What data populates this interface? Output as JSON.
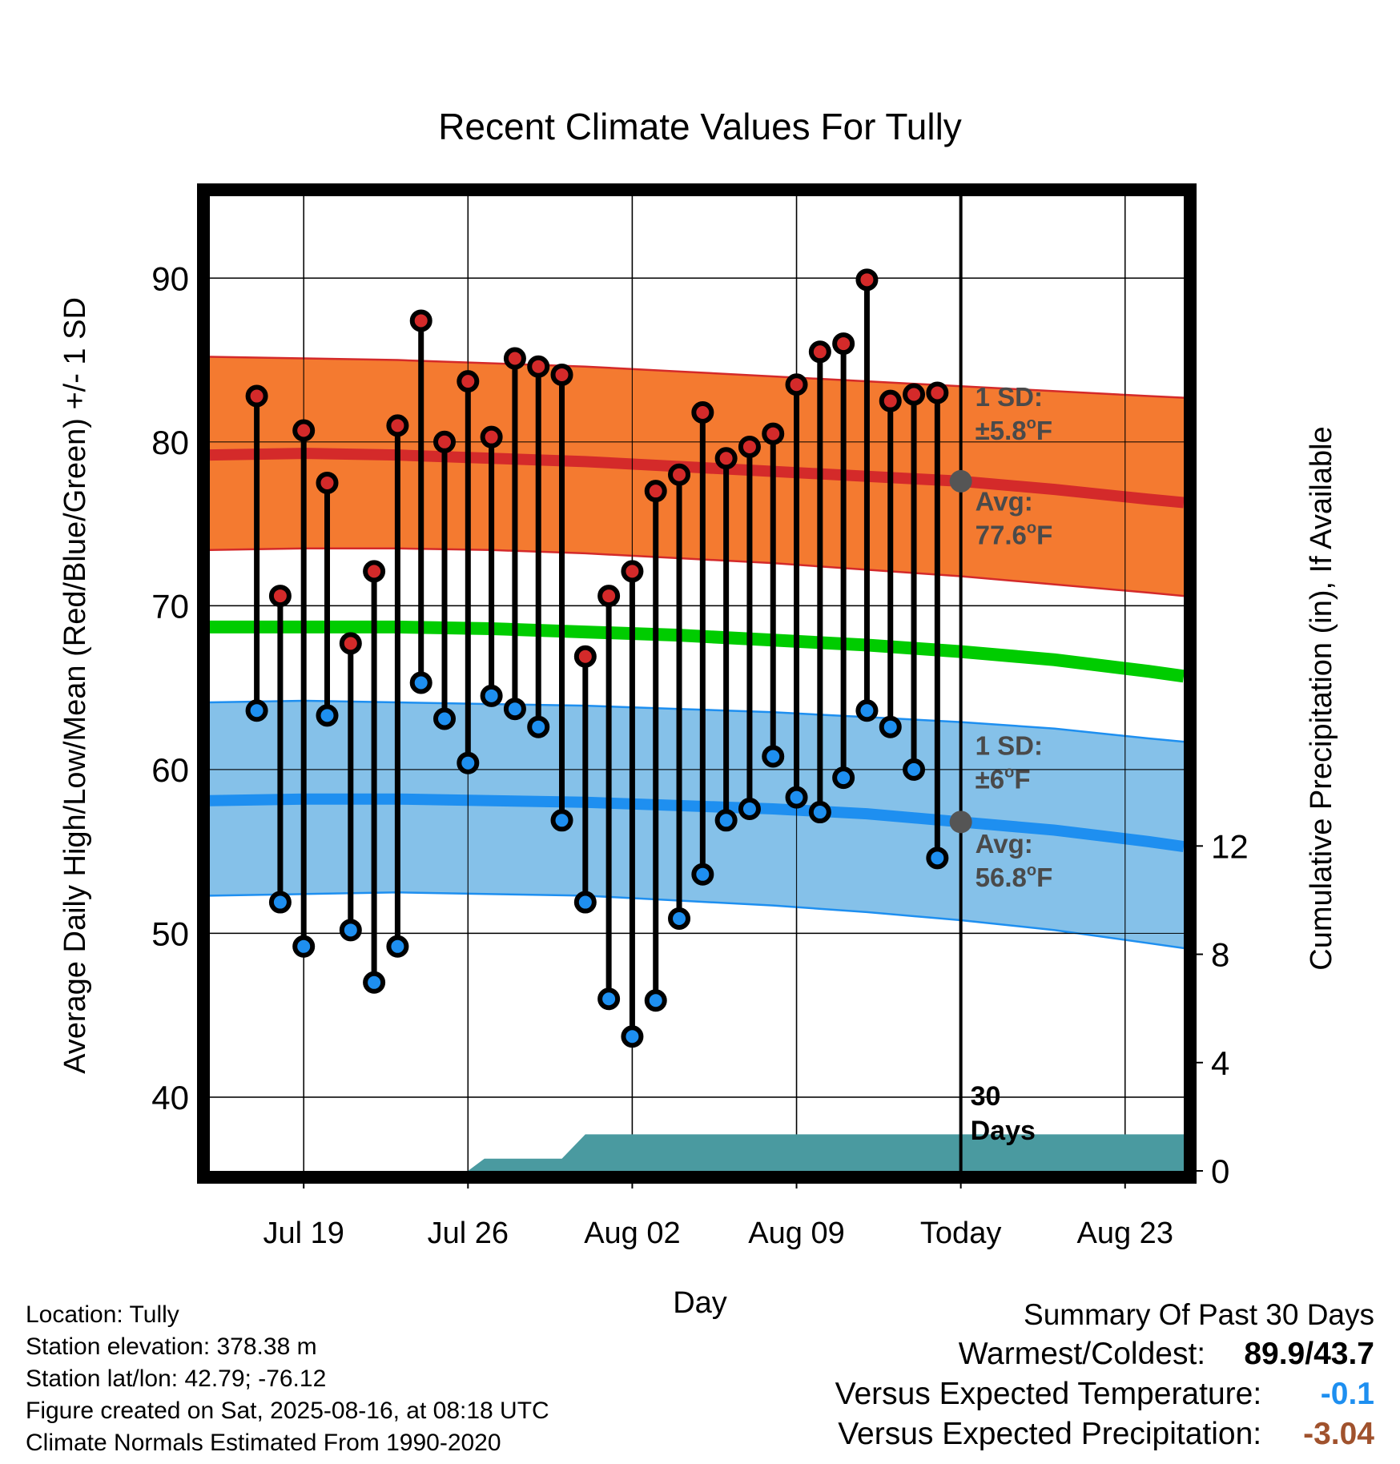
{
  "title": "Recent Climate Values For Tully",
  "chart_data": {
    "type": "line",
    "title": "Recent Climate Values For Tully",
    "xlabel": "Day",
    "ylabel_left": "Average Daily High/Low/Mean (Red/Blue/Green) +/- 1 SD",
    "ylabel_right": "Cumulative Precipitation (in), If Available",
    "ylim_left": [
      35.5,
      95
    ],
    "ylim_right": [
      0,
      36
    ],
    "yticks_left": [
      40,
      50,
      60,
      70,
      80,
      90
    ],
    "yticks_right": [
      0,
      4,
      8,
      12
    ],
    "xlim_days": [
      -32,
      9.5
    ],
    "xticks": [
      {
        "day": -28,
        "label": "Jul 19"
      },
      {
        "day": -21,
        "label": "Jul 26"
      },
      {
        "day": -14,
        "label": "Aug 02"
      },
      {
        "day": -7,
        "label": "Aug 09"
      },
      {
        "day": 0,
        "label": "Today"
      },
      {
        "day": 7,
        "label": "Aug 23"
      }
    ],
    "today_line_day": 0,
    "daily_obs": [
      {
        "day": -30,
        "high": 82.8,
        "low": 63.6
      },
      {
        "day": -29,
        "high": 70.6,
        "low": 51.9
      },
      {
        "day": -28,
        "high": 80.7,
        "low": 49.2
      },
      {
        "day": -27,
        "high": 77.5,
        "low": 63.3
      },
      {
        "day": -26,
        "high": 67.7,
        "low": 50.2
      },
      {
        "day": -25,
        "high": 72.1,
        "low": 47.0
      },
      {
        "day": -24,
        "high": 81.0,
        "low": 49.2
      },
      {
        "day": -23,
        "high": 87.4,
        "low": 65.3
      },
      {
        "day": -22,
        "high": 80.0,
        "low": 63.1
      },
      {
        "day": -21,
        "high": 83.7,
        "low": 60.4
      },
      {
        "day": -20,
        "high": 80.3,
        "low": 64.5
      },
      {
        "day": -19,
        "high": 85.1,
        "low": 63.7
      },
      {
        "day": -18,
        "high": 84.6,
        "low": 62.6
      },
      {
        "day": -17,
        "high": 84.1,
        "low": 56.9
      },
      {
        "day": -16,
        "high": 66.9,
        "low": 51.9
      },
      {
        "day": -15,
        "high": 70.6,
        "low": 46.0
      },
      {
        "day": -14,
        "high": 72.1,
        "low": 43.7
      },
      {
        "day": -13,
        "high": 77.0,
        "low": 45.9
      },
      {
        "day": -12,
        "high": 78.0,
        "low": 50.9
      },
      {
        "day": -11,
        "high": 81.8,
        "low": 53.6
      },
      {
        "day": -10,
        "high": 79.0,
        "low": 56.9
      },
      {
        "day": -9,
        "high": 79.7,
        "low": 57.6
      },
      {
        "day": -8,
        "high": 80.5,
        "low": 60.8
      },
      {
        "day": -7,
        "high": 83.5,
        "low": 58.3
      },
      {
        "day": -6,
        "high": 85.5,
        "low": 57.4
      },
      {
        "day": -5,
        "high": 86.0,
        "low": 59.5
      },
      {
        "day": -4,
        "high": 89.9,
        "low": 63.6
      },
      {
        "day": -3,
        "high": 82.5,
        "low": 62.6
      },
      {
        "day": -2,
        "high": 82.9,
        "low": 60.0
      },
      {
        "day": -1,
        "high": 83.0,
        "low": 54.6
      }
    ],
    "normals": {
      "days": [
        -32,
        -28,
        -24,
        -20,
        -16,
        -12,
        -8,
        -4,
        0,
        4,
        8,
        9.5
      ],
      "high_avg": [
        79.2,
        79.3,
        79.2,
        79.0,
        78.8,
        78.5,
        78.2,
        77.9,
        77.6,
        77.1,
        76.5,
        76.3
      ],
      "high_sd_upper": [
        85.2,
        85.1,
        85.0,
        84.8,
        84.6,
        84.3,
        84.0,
        83.7,
        83.4,
        83.1,
        82.8,
        82.7
      ],
      "high_sd_lower": [
        73.4,
        73.5,
        73.5,
        73.4,
        73.2,
        72.9,
        72.6,
        72.2,
        71.8,
        71.3,
        70.8,
        70.6
      ],
      "low_avg": [
        58.1,
        58.2,
        58.2,
        58.1,
        58.0,
        57.8,
        57.6,
        57.3,
        56.8,
        56.3,
        55.6,
        55.3
      ],
      "low_sd_upper": [
        64.1,
        64.2,
        64.1,
        64.0,
        63.9,
        63.7,
        63.5,
        63.2,
        62.9,
        62.5,
        61.9,
        61.7
      ],
      "low_sd_lower": [
        52.3,
        52.4,
        52.5,
        52.4,
        52.3,
        52.0,
        51.7,
        51.3,
        50.8,
        50.2,
        49.4,
        49.1
      ],
      "mean": [
        68.7,
        68.7,
        68.7,
        68.6,
        68.4,
        68.2,
        67.9,
        67.6,
        67.2,
        66.7,
        66.0,
        65.7
      ]
    },
    "precip_cumulative": {
      "days": [
        -21,
        -20.3,
        -17,
        -16,
        9.5
      ],
      "values": [
        0,
        0.45,
        0.45,
        1.35,
        1.35
      ]
    },
    "annotations": {
      "high_sd": "1 SD:",
      "high_sd_val": "±5.8",
      "high_avg": "Avg:",
      "high_avg_val": "77.6",
      "low_sd": "1 SD:",
      "low_sd_val": "±6",
      "low_avg": "Avg:",
      "low_avg_val": "56.8",
      "degree_sym": "o",
      "unit": "F",
      "days_count": "30",
      "days_word": "Days"
    },
    "colors": {
      "high_band": "#f47a30",
      "high_line": "#d42a2a",
      "low_band": "#85c1e9",
      "low_line": "#1e8ff0",
      "mean_line": "#00cc00",
      "precip": "#4a9aa0",
      "high_marker": "#d42a2a",
      "low_marker": "#1e8ff0",
      "annotation": "#4a4a4a",
      "today_marker": "#555555"
    }
  },
  "footer": {
    "location": "Location: Tully",
    "elevation": "Station elevation: 378.38 m",
    "latlon": "Station lat/lon: 42.79; -76.12",
    "created": "Figure created on Sat, 2025-08-16, at 08:18 UTC",
    "normals": "Climate Normals Estimated From 1990-2020"
  },
  "summary": {
    "title": "Summary Of Past 30 Days",
    "warm_cold_label": "Warmest/Coldest:",
    "warm_cold_value": "89.9/43.7",
    "temp_label": "Versus Expected Temperature:",
    "temp_value": "-0.1",
    "temp_color": "#1e8ff0",
    "precip_label": "Versus Expected Precipitation:",
    "precip_value": "-3.04",
    "precip_color": "#a0522d"
  }
}
